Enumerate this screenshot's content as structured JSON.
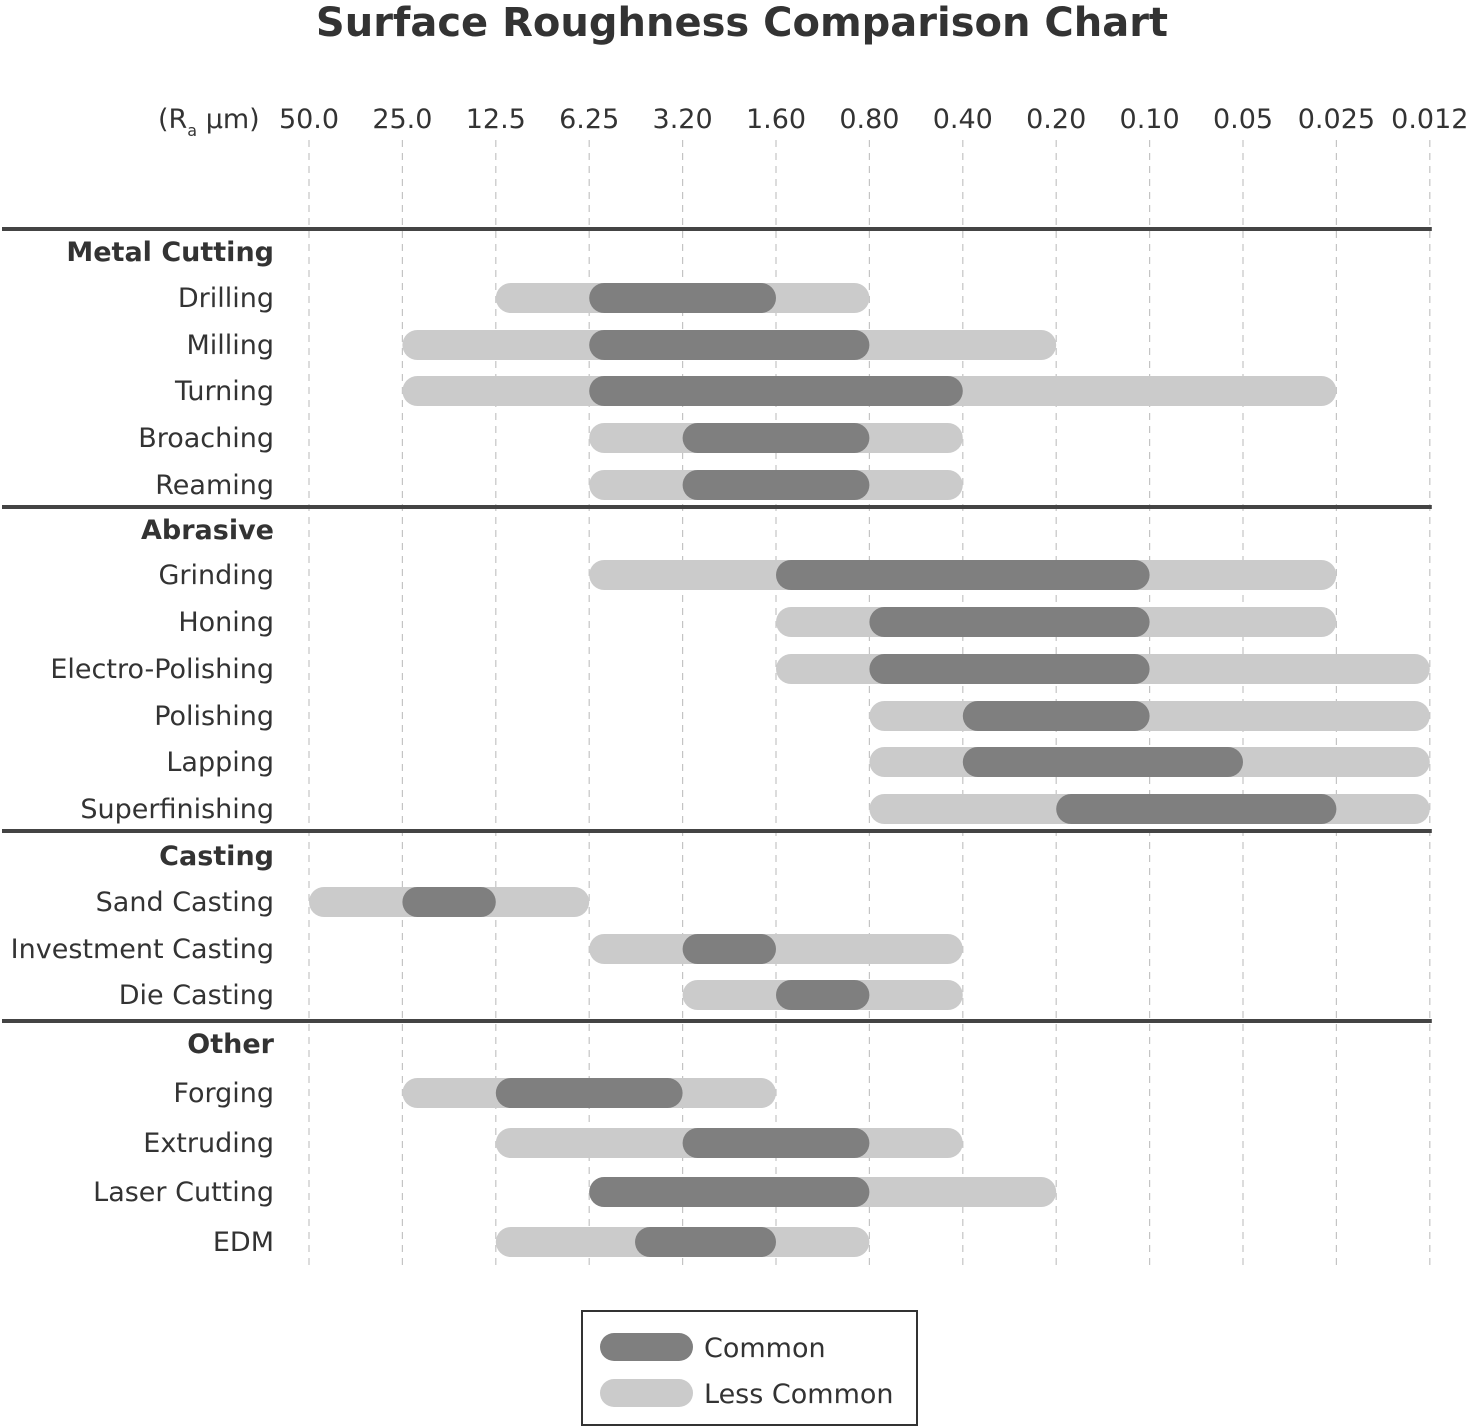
{
  "chart_data": {
    "type": "range-bar",
    "title": "Surface Roughness Comparison Chart",
    "axis": {
      "unit_prefix": "(R",
      "unit_subscript": "a",
      "unit_suffix": " μm)",
      "ticks": [
        "50.0",
        "25.0",
        "12.5",
        "6.25",
        "3.20",
        "1.60",
        "0.80",
        "0.40",
        "0.20",
        "0.10",
        "0.05",
        "0.025",
        "0.012"
      ],
      "scale": "log-reversed",
      "grid": true
    },
    "groups": [
      {
        "name": "Metal Cutting",
        "processes": [
          {
            "name": "Drilling",
            "less_common": [
              12.5,
              0.8
            ],
            "common": [
              6.25,
              1.6
            ]
          },
          {
            "name": "Milling",
            "less_common": [
              25.0,
              0.2
            ],
            "common": [
              6.25,
              0.8
            ]
          },
          {
            "name": "Turning",
            "less_common": [
              25.0,
              0.025
            ],
            "common": [
              6.25,
              0.4
            ]
          },
          {
            "name": "Broaching",
            "less_common": [
              6.25,
              0.4
            ],
            "common": [
              3.2,
              0.8
            ]
          },
          {
            "name": "Reaming",
            "less_common": [
              6.25,
              0.4
            ],
            "common": [
              3.2,
              0.8
            ]
          }
        ]
      },
      {
        "name": "Abrasive",
        "processes": [
          {
            "name": "Grinding",
            "less_common": [
              6.25,
              0.025
            ],
            "common": [
              1.6,
              0.1
            ]
          },
          {
            "name": "Honing",
            "less_common": [
              1.6,
              0.025
            ],
            "common": [
              0.8,
              0.1
            ]
          },
          {
            "name": "Electro-Polishing",
            "less_common": [
              1.6,
              0.012
            ],
            "common": [
              0.8,
              0.1
            ]
          },
          {
            "name": "Polishing",
            "less_common": [
              0.8,
              0.012
            ],
            "common": [
              0.4,
              0.1
            ]
          },
          {
            "name": "Lapping",
            "less_common": [
              0.8,
              0.012
            ],
            "common": [
              0.4,
              0.05
            ]
          },
          {
            "name": "Superfinishing",
            "less_common": [
              0.8,
              0.012
            ],
            "common": [
              0.2,
              0.025
            ]
          }
        ]
      },
      {
        "name": "Casting",
        "processes": [
          {
            "name": "Sand Casting",
            "less_common": [
              50.0,
              6.25
            ],
            "common": [
              25.0,
              12.5
            ]
          },
          {
            "name": "Investment Casting",
            "less_common": [
              6.25,
              0.4
            ],
            "common": [
              3.2,
              1.6
            ]
          },
          {
            "name": "Die Casting",
            "less_common": [
              3.2,
              0.4
            ],
            "common": [
              1.6,
              0.8
            ]
          }
        ]
      },
      {
        "name": "Other",
        "processes": [
          {
            "name": "Forging",
            "less_common": [
              25.0,
              1.6
            ],
            "common": [
              12.5,
              3.2
            ]
          },
          {
            "name": "Extruding",
            "less_common": [
              12.5,
              0.4
            ],
            "common": [
              3.2,
              0.8
            ]
          },
          {
            "name": "Laser Cutting",
            "less_common": [
              6.25,
              0.2
            ],
            "common": [
              6.25,
              0.8
            ]
          },
          {
            "name": "EDM",
            "less_common": [
              12.5,
              0.8
            ],
            "common": [
              4.5,
              1.6
            ]
          }
        ]
      }
    ],
    "legend": {
      "placement": "bottom-center",
      "items": [
        {
          "label": "Common",
          "color": "#7f7f7f"
        },
        {
          "label": "Less Common",
          "color": "#cbcbcb"
        }
      ]
    },
    "colors": {
      "common": "#7f7f7f",
      "less_common": "#cbcbcb",
      "grid": "#c4c4c4",
      "separator": "#444444",
      "text": "#333333"
    }
  }
}
